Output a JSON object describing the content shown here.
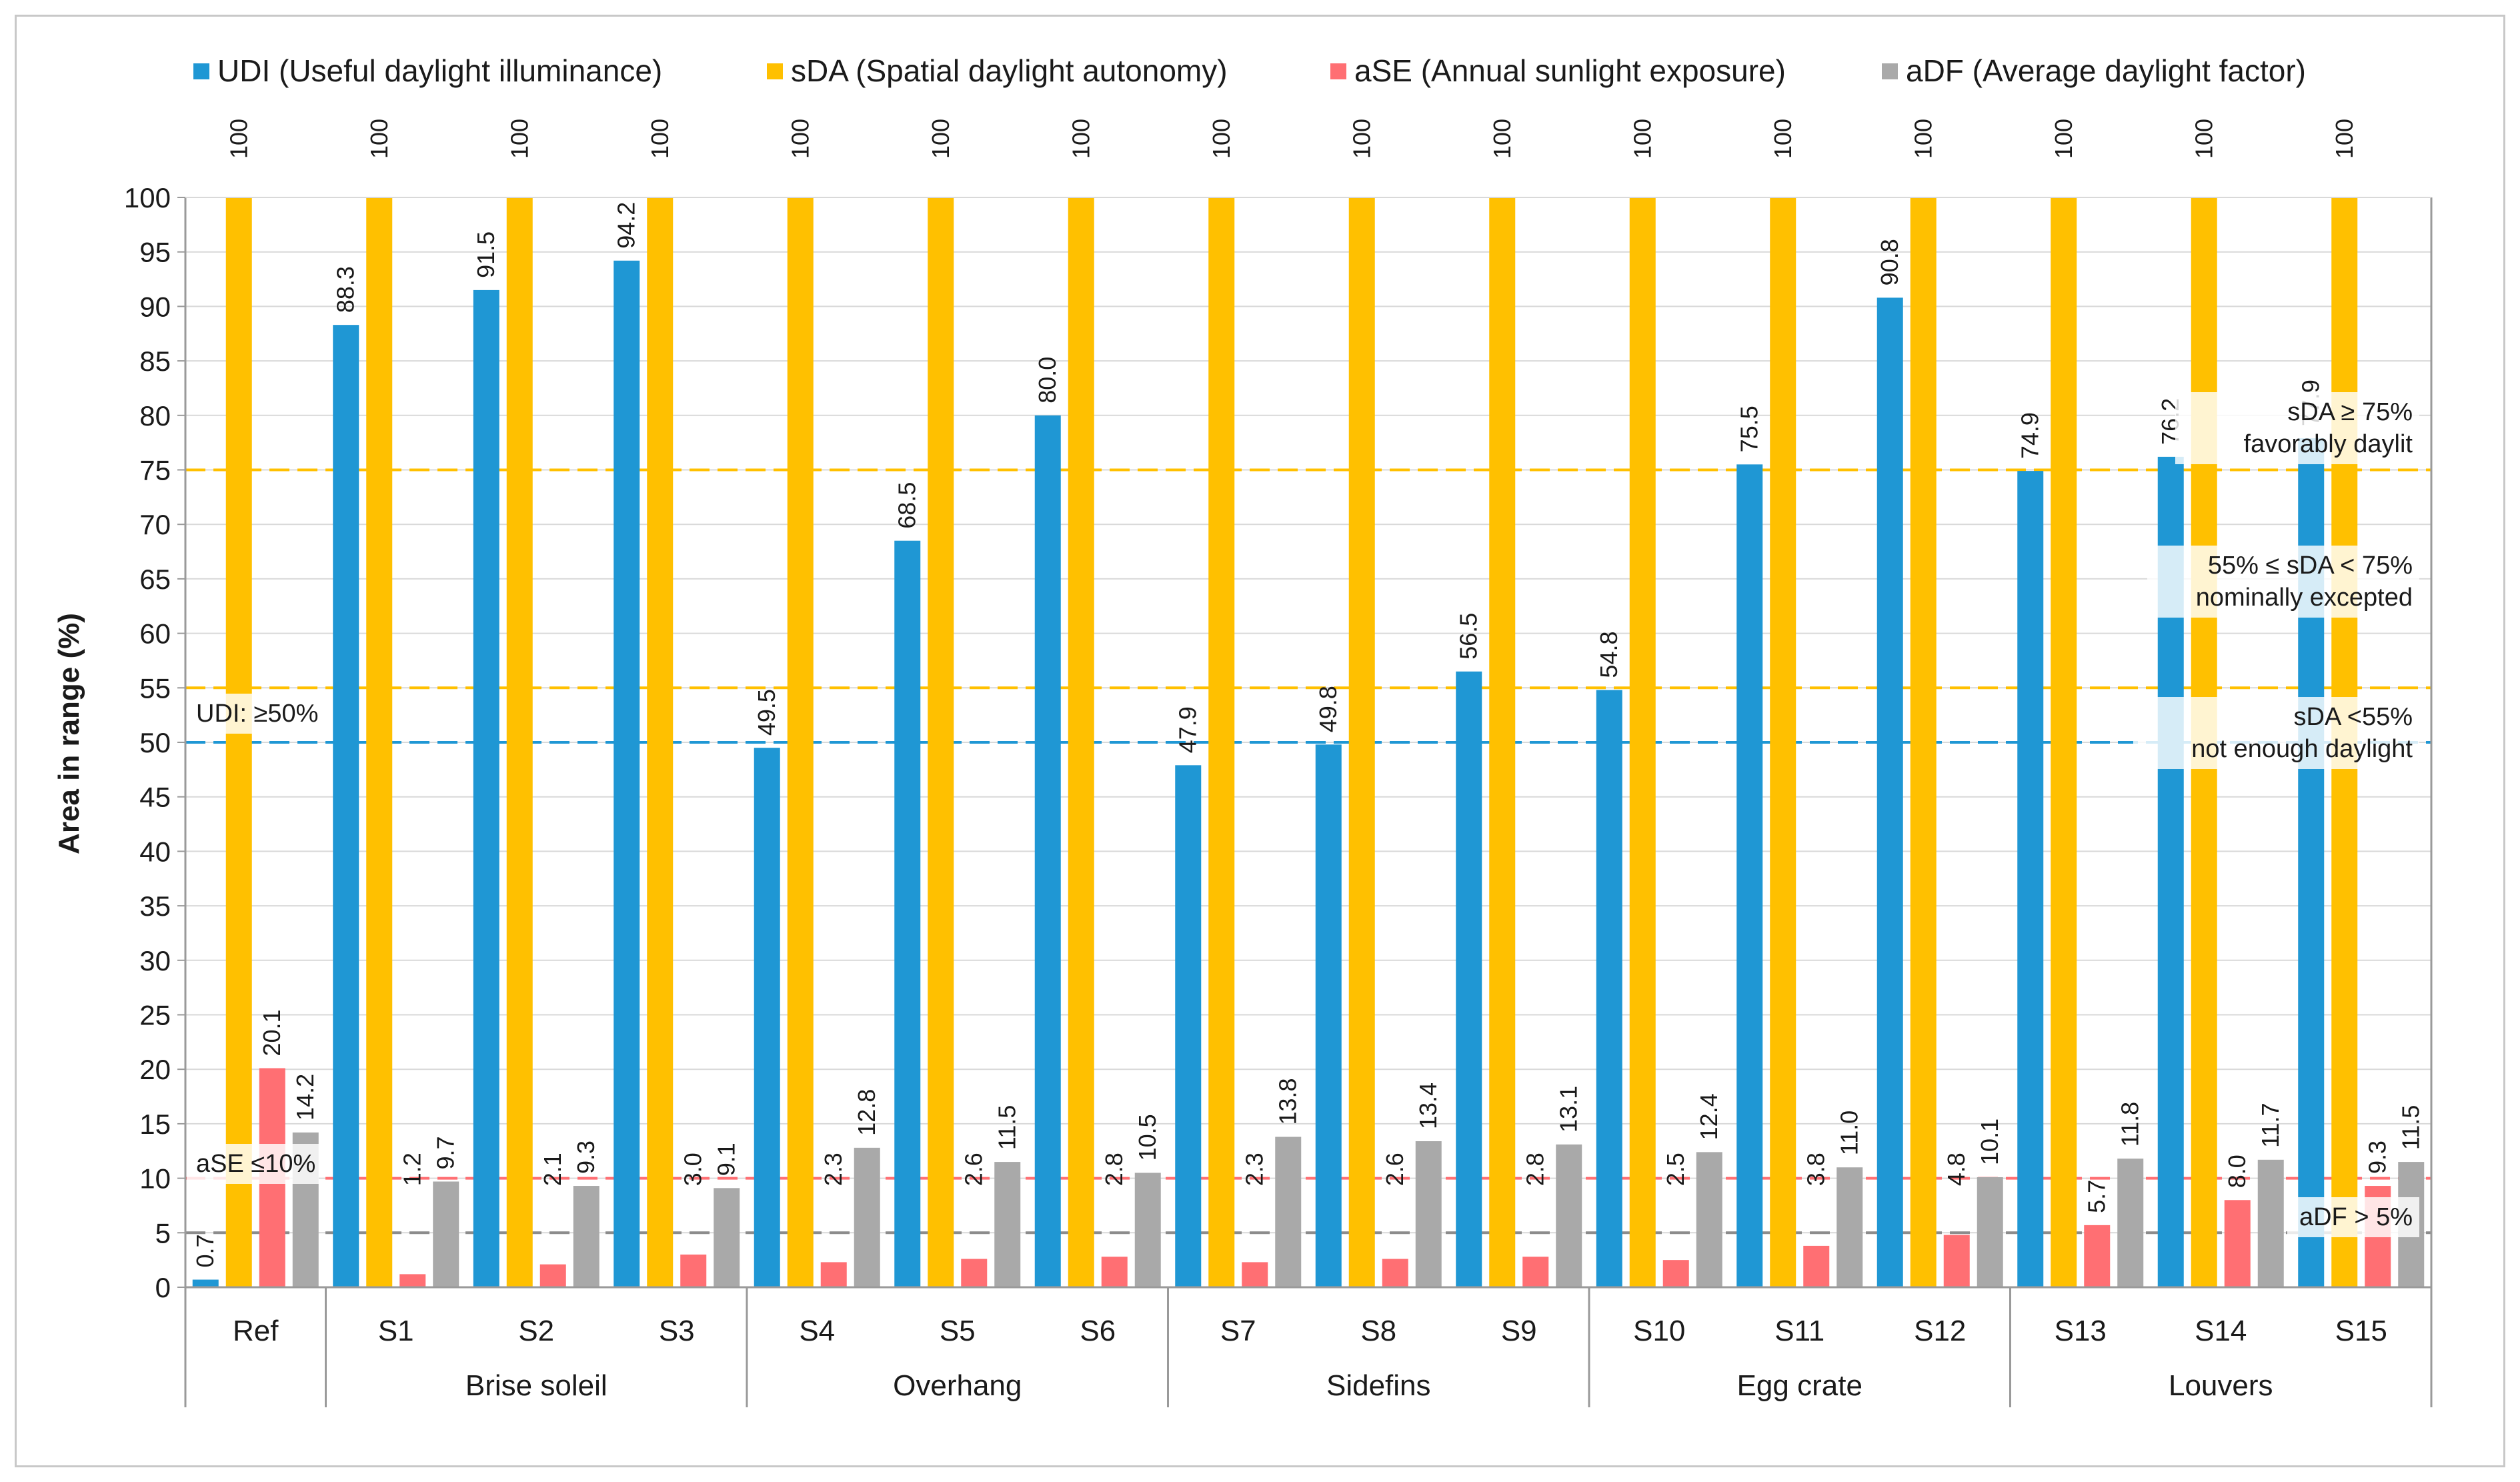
{
  "chart_data": {
    "type": "bar",
    "ylabel": "Area in range (%)",
    "ylim": [
      0,
      100
    ],
    "ytick_step": 5,
    "legend_position": "top",
    "categories": [
      "Ref",
      "S1",
      "S2",
      "S3",
      "S4",
      "S5",
      "S6",
      "S7",
      "S8",
      "S9",
      "S10",
      "S11",
      "S12",
      "S13",
      "S14",
      "S15"
    ],
    "groups": [
      {
        "label": "",
        "members": [
          "Ref"
        ]
      },
      {
        "label": "Brise soleil",
        "members": [
          "S1",
          "S2",
          "S3"
        ]
      },
      {
        "label": "Overhang",
        "members": [
          "S4",
          "S5",
          "S6"
        ]
      },
      {
        "label": "Sidefins",
        "members": [
          "S7",
          "S8",
          "S9"
        ]
      },
      {
        "label": "Egg crate",
        "members": [
          "S10",
          "S11",
          "S12"
        ]
      },
      {
        "label": "Louvers",
        "members": [
          "S13",
          "S14",
          "S15"
        ]
      }
    ],
    "series": [
      {
        "name": "UDI (Useful daylight illuminance)",
        "color": "#1f97d4",
        "values": [
          0.7,
          88.3,
          91.5,
          94.2,
          49.5,
          68.5,
          80.0,
          47.9,
          49.8,
          56.5,
          54.8,
          75.5,
          90.8,
          74.9,
          76.2,
          77.9
        ]
      },
      {
        "name": "sDA (Spatial daylight autonomy)",
        "color": "#ffc000",
        "values": [
          100,
          100,
          100,
          100,
          100,
          100,
          100,
          100,
          100,
          100,
          100,
          100,
          100,
          100,
          100,
          100
        ]
      },
      {
        "name": "aSE (Annual sunlight exposure)",
        "color": "#ff6f73",
        "values": [
          20.1,
          1.2,
          2.1,
          3.0,
          2.3,
          2.6,
          2.8,
          2.3,
          2.6,
          2.8,
          2.5,
          3.8,
          4.8,
          5.7,
          8.0,
          9.3
        ]
      },
      {
        "name": "aDF (Average daylight factor)",
        "color": "#a9a9a9",
        "values": [
          14.2,
          9.7,
          9.3,
          9.1,
          12.8,
          11.5,
          10.5,
          13.8,
          13.4,
          13.1,
          12.4,
          11.0,
          10.1,
          11.8,
          11.7,
          11.5
        ]
      }
    ],
    "reference_lines": [
      {
        "value": 75,
        "color": "#ffc000",
        "label_lines": [
          "sDA ≥ 75%",
          "favorably daylit"
        ]
      },
      {
        "value": 55,
        "color": "#ffc000",
        "label_lines": [
          "55% ≤ sDA < 75%",
          "nominally excepted"
        ]
      },
      {
        "value": 50,
        "color": "#1f97d4",
        "label_lines": [
          "UDI: ≥50%"
        ]
      },
      {
        "value": 10,
        "color": "#ff6f73",
        "label_lines": [
          "aSE ≤10%"
        ]
      },
      {
        "value": 5,
        "color": "#8c8c8c",
        "label_lines": [
          "aDF > 5%"
        ]
      }
    ],
    "zone_labels": [
      {
        "label_lines": [
          "sDA <55%",
          "not enough daylight"
        ]
      }
    ]
  }
}
